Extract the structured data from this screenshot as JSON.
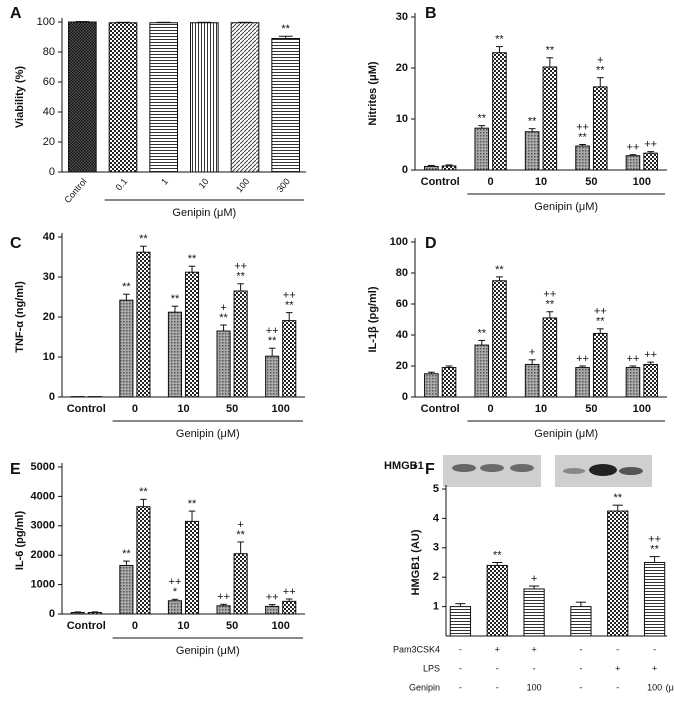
{
  "chart_data": [
    {
      "type": "bar",
      "panel": "A",
      "ylabel": "Viability  (%)",
      "xlabel": "Genipin (μM)",
      "categories": [
        "Control",
        "0.1",
        "1",
        "10",
        "100",
        "300"
      ],
      "series": [
        {
          "patterns": [
            "dense",
            "checker",
            "hlines",
            "vlines",
            "diag",
            "hlines"
          ],
          "values": [
            100,
            99.5,
            99.5,
            99.5,
            99.5,
            89
          ],
          "errors": [
            0.3,
            0.3,
            0.3,
            0.3,
            0.3,
            1.5
          ],
          "annotations": [
            null,
            null,
            null,
            null,
            null,
            [
              "**"
            ]
          ]
        }
      ],
      "ylim": [
        0,
        100
      ],
      "yticks": [
        0,
        20,
        40,
        60,
        80,
        100
      ]
    },
    {
      "type": "bar",
      "panel": "B",
      "ylabel": "Nitrites (μM)",
      "xlabel": "Genipin (μM)",
      "categories": [
        "Control",
        "0",
        "10",
        "50",
        "100"
      ],
      "series": [
        {
          "pattern": "dots",
          "values": [
            0.7,
            8.2,
            7.5,
            4.7,
            2.8
          ],
          "errors": [
            0.2,
            0.5,
            0.6,
            0.3,
            0.2
          ],
          "annotations": [
            null,
            [
              "**"
            ],
            [
              "**"
            ],
            [
              "++",
              "**"
            ],
            [
              "++"
            ]
          ]
        },
        {
          "pattern": "checker",
          "values": [
            0.8,
            23.0,
            20.2,
            16.3,
            3.3
          ],
          "errors": [
            0.2,
            1.2,
            1.8,
            1.8,
            0.3
          ],
          "annotations": [
            null,
            [
              "**"
            ],
            [
              "**"
            ],
            [
              "+",
              "**"
            ],
            [
              "++"
            ]
          ]
        }
      ],
      "ylim": [
        0,
        30
      ],
      "yticks": [
        0,
        10,
        20,
        30
      ]
    },
    {
      "type": "bar",
      "panel": "C",
      "ylabel": "TNF-α (ng/ml)",
      "xlabel": "Genipin (μM)",
      "categories": [
        "Control",
        "0",
        "10",
        "50",
        "100"
      ],
      "series": [
        {
          "pattern": "dots",
          "values": [
            0.1,
            24.2,
            21.2,
            16.5,
            10.2
          ],
          "errors": [
            0,
            1.5,
            1.5,
            1.5,
            2
          ],
          "annotations": [
            null,
            [
              "**"
            ],
            [
              "**"
            ],
            [
              "+",
              "**"
            ],
            [
              "++",
              "**"
            ]
          ]
        },
        {
          "pattern": "checker",
          "values": [
            0.1,
            36.2,
            31.2,
            26.5,
            19.1
          ],
          "errors": [
            0,
            1.5,
            1.5,
            1.8,
            2
          ],
          "annotations": [
            null,
            [
              "**"
            ],
            [
              "**"
            ],
            [
              "++",
              "**"
            ],
            [
              "++",
              "**"
            ]
          ]
        }
      ],
      "ylim": [
        0,
        40
      ],
      "yticks": [
        0,
        10,
        20,
        30,
        40
      ]
    },
    {
      "type": "bar",
      "panel": "D",
      "ylabel": "IL-1β (pg/ml)",
      "xlabel": "Genipin (μM)",
      "categories": [
        "Control",
        "0",
        "10",
        "50",
        "100"
      ],
      "series": [
        {
          "pattern": "dots",
          "values": [
            15,
            33.5,
            21,
            19,
            19
          ],
          "errors": [
            1,
            3,
            3,
            1,
            1
          ],
          "annotations": [
            null,
            [
              "**"
            ],
            [
              "+"
            ],
            [
              "++"
            ],
            [
              "++"
            ]
          ]
        },
        {
          "pattern": "checker",
          "values": [
            19,
            75,
            51,
            41,
            21
          ],
          "errors": [
            1,
            2.5,
            4,
            3,
            1.5
          ],
          "annotations": [
            null,
            [
              "**"
            ],
            [
              "++",
              "**"
            ],
            [
              "++",
              "**"
            ],
            [
              "++"
            ]
          ]
        }
      ],
      "ylim": [
        0,
        100
      ],
      "yticks": [
        0,
        20,
        40,
        60,
        80,
        100
      ]
    },
    {
      "type": "bar",
      "panel": "E",
      "ylabel": "IL-6 (pg/ml)",
      "xlabel": "Genipin (μM)",
      "categories": [
        "Control",
        "0",
        "10",
        "50",
        "100"
      ],
      "series": [
        {
          "pattern": "dots",
          "values": [
            50,
            1650,
            450,
            280,
            260
          ],
          "errors": [
            20,
            150,
            50,
            50,
            60
          ],
          "annotations": [
            null,
            [
              "**"
            ],
            [
              "++",
              "*"
            ],
            [
              "++"
            ],
            [
              "++"
            ]
          ]
        },
        {
          "pattern": "checker",
          "values": [
            50,
            3650,
            3150,
            2050,
            430
          ],
          "errors": [
            20,
            250,
            350,
            400,
            80
          ],
          "annotations": [
            null,
            [
              "**"
            ],
            [
              "**"
            ],
            [
              "+",
              "**"
            ],
            [
              "++"
            ]
          ]
        }
      ],
      "ylim": [
        0,
        5000
      ],
      "yticks": [
        0,
        1000,
        2000,
        3000,
        4000,
        5000
      ]
    },
    {
      "type": "bar",
      "panel": "F",
      "ylabel": "HMGB1 (AU)",
      "blot_label": "HMGB1",
      "series": [
        {
          "patterns": [
            "hlines",
            "checker",
            "hlines",
            "hlines",
            "checker",
            "hlines"
          ],
          "values": [
            1.0,
            2.4,
            1.6,
            1.0,
            4.25,
            2.5
          ],
          "errors": [
            0.1,
            0.1,
            0.1,
            0.15,
            0.2,
            0.2
          ],
          "annotations": [
            null,
            [
              "**"
            ],
            [
              "+"
            ],
            null,
            [
              "**"
            ],
            [
              "++",
              "**"
            ]
          ]
        }
      ],
      "rows": [
        {
          "label": "Pam3CSK4",
          "marks": [
            "-",
            "+",
            "+",
            "-",
            "-",
            "-"
          ]
        },
        {
          "label": "LPS",
          "marks": [
            "-",
            "-",
            "-",
            "-",
            "+",
            "+"
          ]
        },
        {
          "label": "Genipin",
          "marks": [
            "-",
            "-",
            "100",
            "-",
            "-",
            "100"
          ]
        }
      ],
      "unit": "(μM)",
      "ylim": [
        0,
        5
      ],
      "yticks": [
        1,
        2,
        3,
        4,
        5
      ]
    }
  ]
}
